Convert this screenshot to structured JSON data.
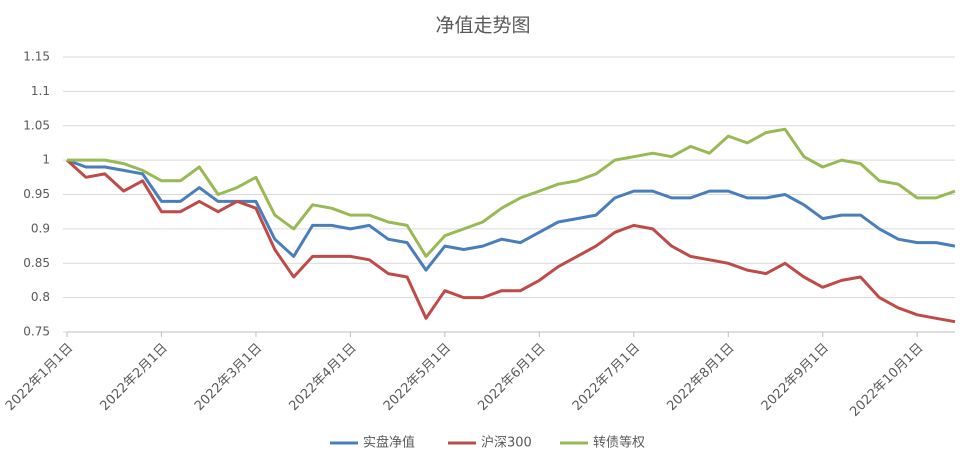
{
  "chart_data": {
    "type": "line",
    "title": "净值走势图",
    "categories": [
      "2022年1月1日",
      null,
      null,
      null,
      null,
      "2022年2月1日",
      null,
      null,
      null,
      null,
      "2022年3月1日",
      null,
      null,
      null,
      null,
      "2022年4月1日",
      null,
      null,
      null,
      null,
      "2022年5月1日",
      null,
      null,
      null,
      null,
      "2022年6月1日",
      null,
      null,
      null,
      null,
      "2022年7月1日",
      null,
      null,
      null,
      null,
      "2022年8月1日",
      null,
      null,
      null,
      null,
      "2022年9月1日",
      null,
      null,
      null,
      null,
      "2022年10月1日",
      null,
      null
    ],
    "series": [
      {
        "name": "实盘净值",
        "color": "#4a7ebb",
        "values": [
          1.0,
          0.99,
          0.99,
          0.985,
          0.98,
          0.94,
          0.94,
          0.96,
          0.94,
          0.94,
          0.94,
          0.885,
          0.86,
          0.905,
          0.905,
          0.9,
          0.905,
          0.885,
          0.88,
          0.84,
          0.875,
          0.87,
          0.875,
          0.885,
          0.88,
          0.895,
          0.91,
          0.915,
          0.92,
          0.945,
          0.955,
          0.955,
          0.945,
          0.945,
          0.955,
          0.955,
          0.945,
          0.945,
          0.95,
          0.935,
          0.915,
          0.92,
          0.92,
          0.9,
          0.885,
          0.88,
          0.88,
          0.875
        ]
      },
      {
        "name": "沪深300",
        "color": "#be4b48",
        "values": [
          1.0,
          0.975,
          0.98,
          0.955,
          0.97,
          0.925,
          0.925,
          0.94,
          0.925,
          0.94,
          0.93,
          0.87,
          0.83,
          0.86,
          0.86,
          0.86,
          0.855,
          0.835,
          0.83,
          0.77,
          0.81,
          0.8,
          0.8,
          0.81,
          0.81,
          0.825,
          0.845,
          0.86,
          0.875,
          0.895,
          0.905,
          0.9,
          0.875,
          0.86,
          0.855,
          0.85,
          0.84,
          0.835,
          0.85,
          0.83,
          0.815,
          0.825,
          0.83,
          0.8,
          0.785,
          0.775,
          0.77,
          0.765
        ]
      },
      {
        "name": "转债等权",
        "color": "#98b954",
        "values": [
          1.0,
          1.0,
          1.0,
          0.995,
          0.985,
          0.97,
          0.97,
          0.99,
          0.95,
          0.96,
          0.975,
          0.92,
          0.9,
          0.935,
          0.93,
          0.92,
          0.92,
          0.91,
          0.905,
          0.86,
          0.89,
          0.9,
          0.91,
          0.93,
          0.945,
          0.955,
          0.965,
          0.97,
          0.98,
          1.0,
          1.005,
          1.01,
          1.005,
          1.02,
          1.01,
          1.035,
          1.025,
          1.04,
          1.045,
          1.005,
          0.99,
          1.0,
          0.995,
          0.97,
          0.965,
          0.945,
          0.945,
          0.955
        ]
      }
    ],
    "ylim": [
      0.75,
      1.15
    ],
    "yticks": [
      0.75,
      0.8,
      0.85,
      0.9,
      0.95,
      1,
      1.05,
      1.1,
      1.15
    ],
    "grid": true,
    "legend": "bottom"
  }
}
